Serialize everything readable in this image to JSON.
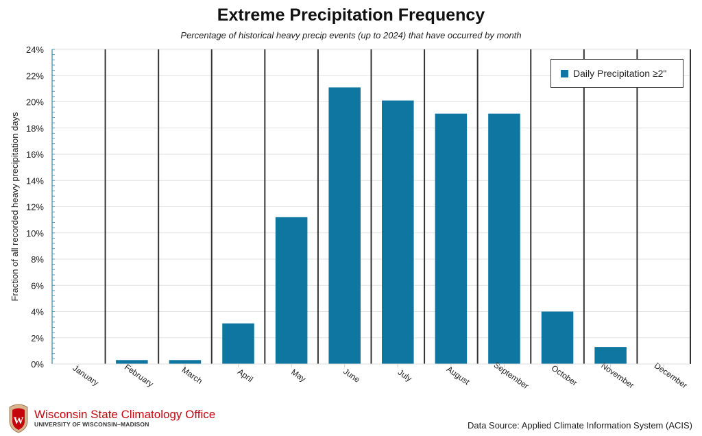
{
  "header": {
    "title": "Extreme Precipitation Frequency",
    "subtitle": "Percentage of historical heavy precip events (up to 2024) that have occurred by month"
  },
  "footer": {
    "source": "Data Source: Applied Climate Information System (ACIS)",
    "org": "Wisconsin State Climatology Office",
    "university": "UNIVERSITY OF WISCONSIN–MADISON",
    "logo_letter": "W"
  },
  "colors": {
    "bar": "#0e76a1",
    "divider": "#333333",
    "grid": "#e2e2e2",
    "brand": "#c5050c"
  },
  "chart_data": {
    "type": "bar",
    "title": "Extreme Precipitation Frequency",
    "subtitle": "Percentage of historical heavy precip events (up to 2024) that have occurred by month",
    "xlabel": "",
    "ylabel": "Fraction of all recorded heavy precipitation days",
    "ylim": [
      0,
      24
    ],
    "yticks": [
      "0%",
      "2%",
      "4%",
      "6%",
      "8%",
      "10%",
      "12%",
      "14%",
      "16%",
      "18%",
      "20%",
      "22%",
      "24%"
    ],
    "categories": [
      "January",
      "February",
      "March",
      "April",
      "May",
      "June",
      "July",
      "August",
      "September",
      "October",
      "November",
      "December"
    ],
    "series": [
      {
        "name": "Daily Precipitation ≥2\"",
        "values": [
          0,
          0.3,
          0.3,
          3.1,
          11.2,
          21.1,
          20.1,
          19.1,
          19.1,
          4.0,
          1.3,
          0
        ]
      }
    ],
    "legend": "top-right",
    "grid": true
  }
}
